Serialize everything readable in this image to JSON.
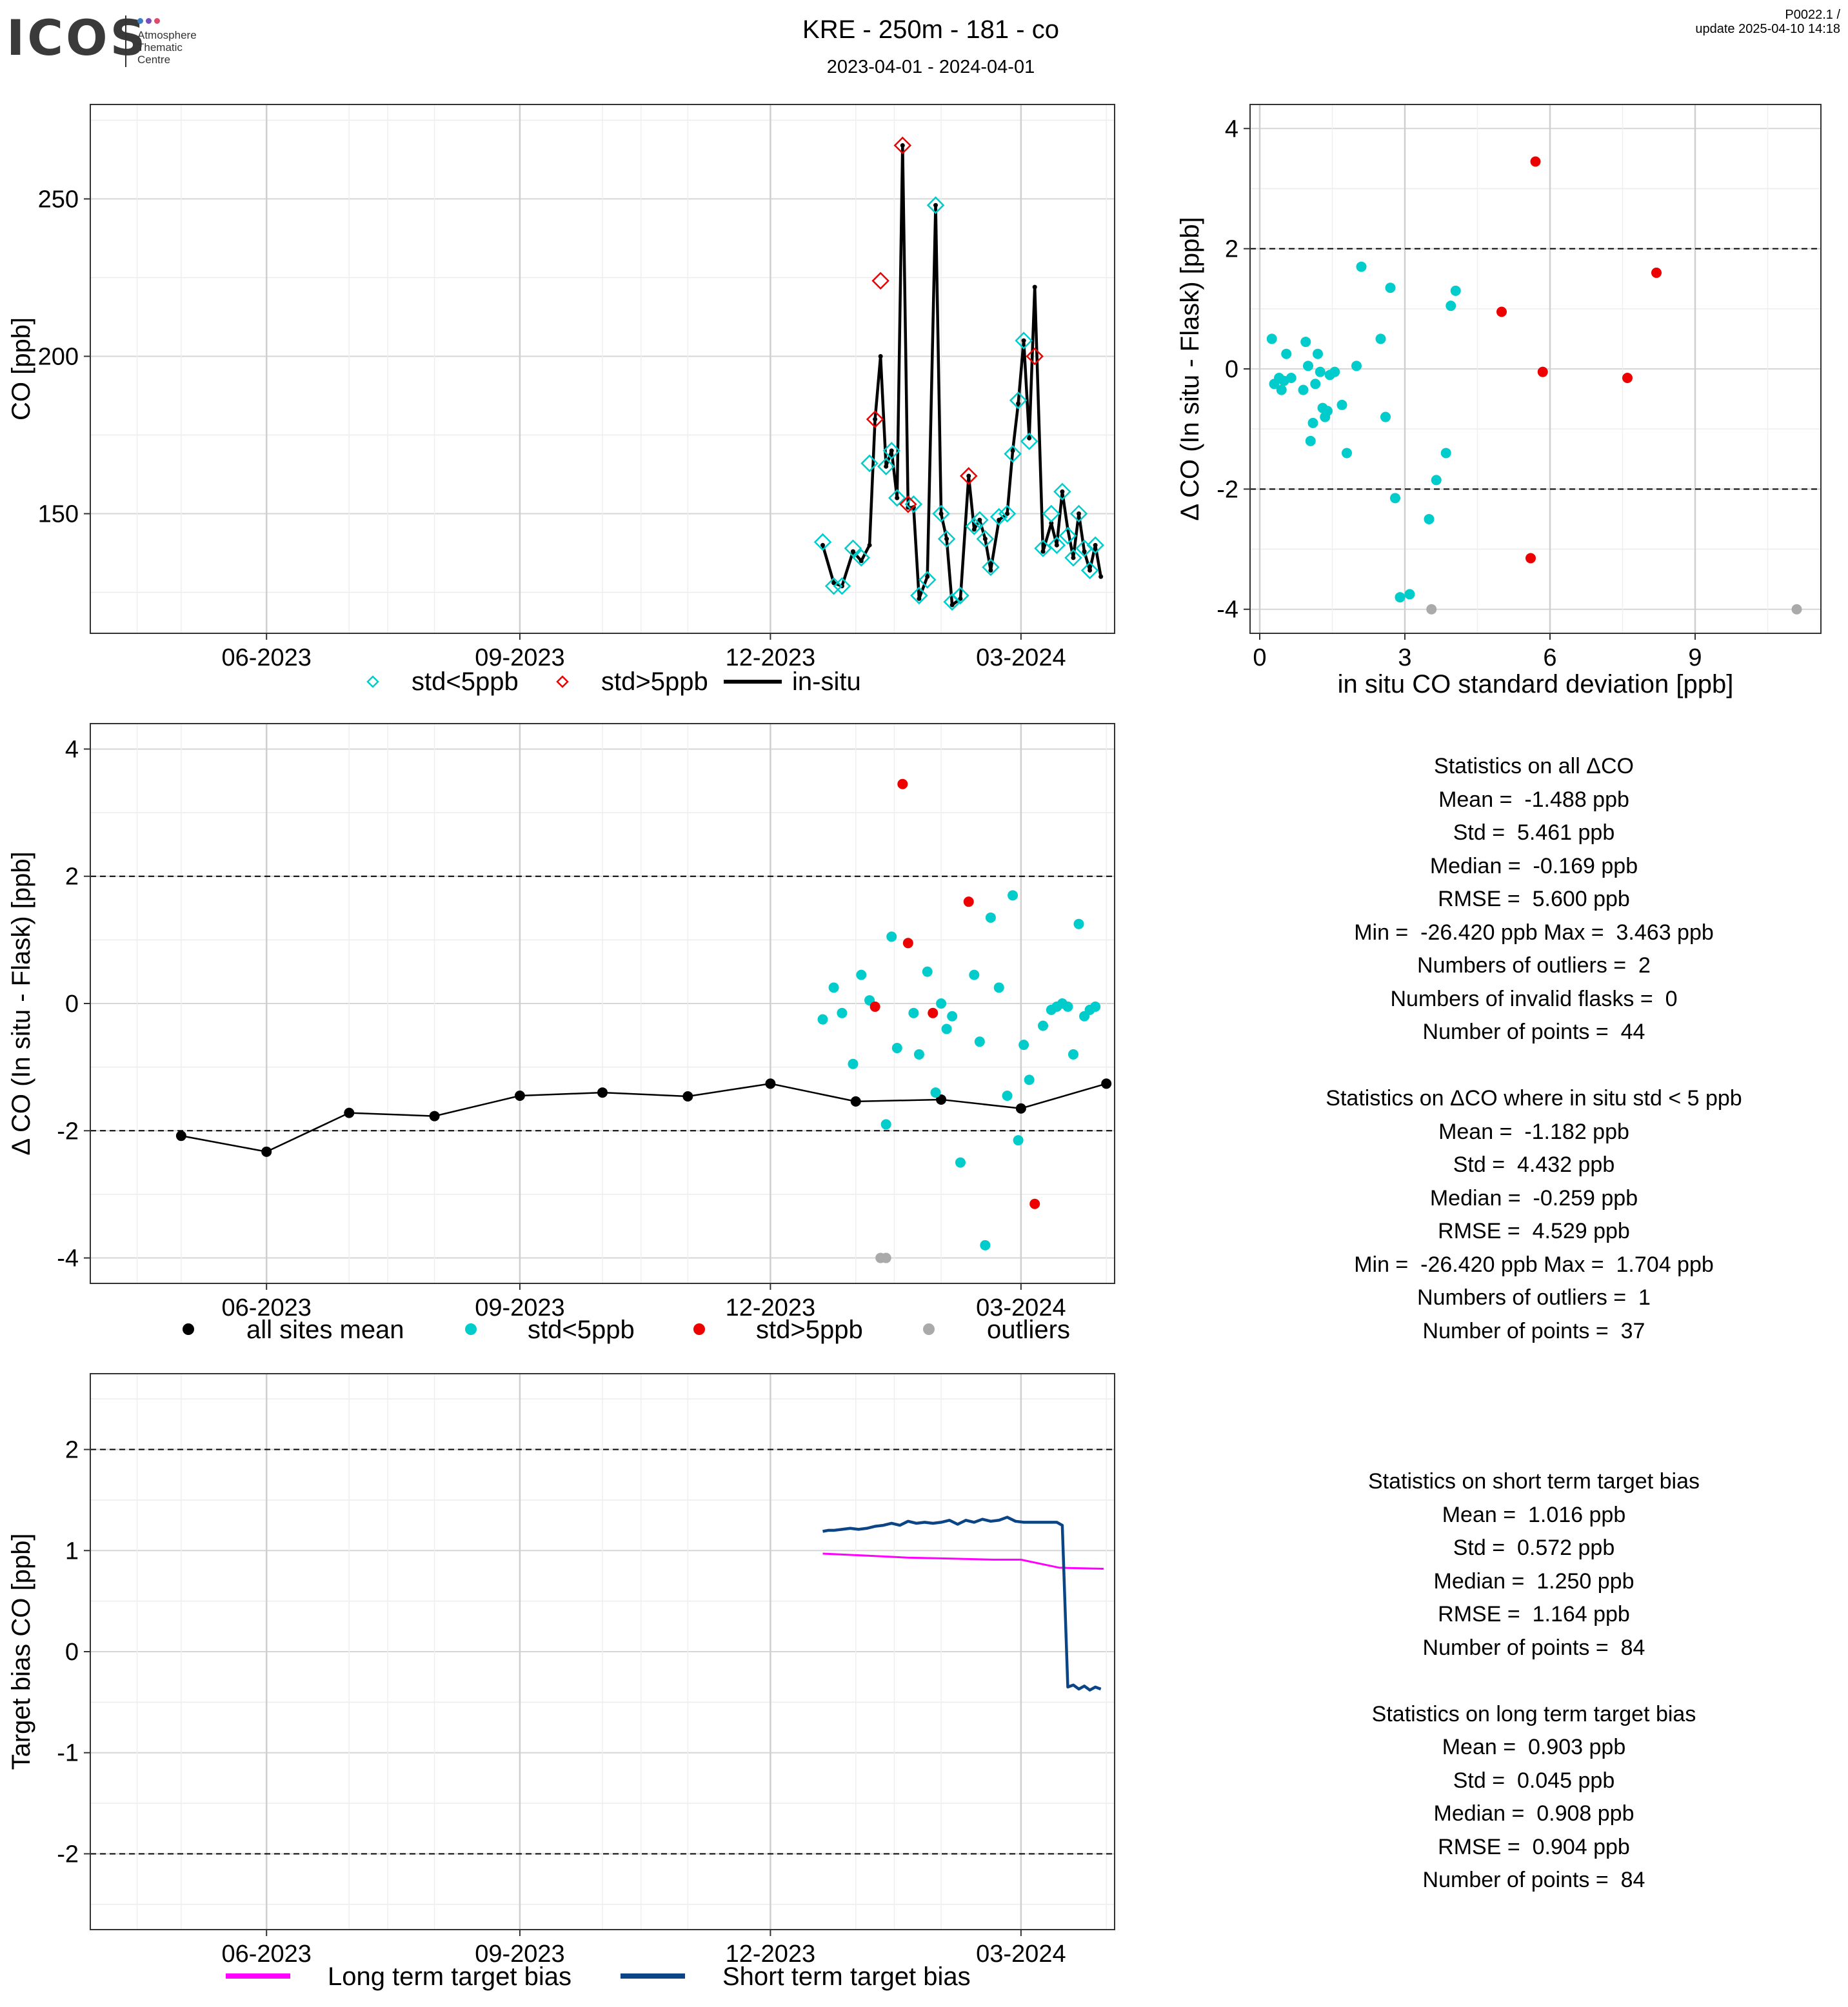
{
  "header": {
    "logo_text": "ICOS",
    "logo_sub": [
      "Atmosphere",
      "Thematic",
      "Centre"
    ],
    "title": "KRE - 250m - 181 - co",
    "subtitle": "2023-04-01 - 2024-04-01",
    "version_line1": "P0022.1 /",
    "version_line2": "update  2025-04-10 14:18"
  },
  "colors": {
    "cyan": "#00CCCC",
    "red": "#EE0000",
    "grey": "#AAAAAA",
    "black": "#000000",
    "magenta": "#FF00FF",
    "navy": "#0B4586"
  },
  "chart_data": [
    {
      "id": "co-timeseries",
      "type": "line",
      "ylabel": "CO [ppb]",
      "x_ticks": [
        "06-2023",
        "09-2023",
        "12-2023",
        "03-2024"
      ],
      "x_tick_dates": [
        "2023-06-01",
        "2023-09-01",
        "2023-12-01",
        "2024-03-01"
      ],
      "xlim": [
        "2023-03-29",
        "2024-04-04"
      ],
      "y_ticks": [
        150,
        200,
        250
      ],
      "ylim": [
        112,
        280
      ],
      "grid": true,
      "legend": {
        "position": "bottom",
        "entries": [
          "std<5ppb",
          "std>5ppb",
          "in-situ"
        ]
      },
      "series": [
        {
          "name": "in-situ",
          "x": [
            "2023-12-20",
            "2023-12-24",
            "2023-12-27",
            "2023-12-31",
            "2024-01-03",
            "2024-01-06",
            "2024-01-08",
            "2024-01-10",
            "2024-01-12",
            "2024-01-14",
            "2024-01-16",
            "2024-01-18",
            "2024-01-20",
            "2024-01-22",
            "2024-01-24",
            "2024-01-27",
            "2024-01-30",
            "2024-02-01",
            "2024-02-03",
            "2024-02-05",
            "2024-02-08",
            "2024-02-11",
            "2024-02-13",
            "2024-02-15",
            "2024-02-17",
            "2024-02-19",
            "2024-02-22",
            "2024-02-25",
            "2024-02-27",
            "2024-02-29",
            "2024-03-02",
            "2024-03-04",
            "2024-03-06",
            "2024-03-09",
            "2024-03-12",
            "2024-03-14",
            "2024-03-16",
            "2024-03-18",
            "2024-03-20",
            "2024-03-22",
            "2024-03-24",
            "2024-03-26",
            "2024-03-28",
            "2024-03-30"
          ],
          "values": [
            140,
            128,
            127,
            138,
            135,
            140,
            180,
            200,
            165,
            170,
            155,
            267,
            152,
            152,
            123,
            130,
            248,
            150,
            142,
            121,
            123,
            162,
            145,
            148,
            142,
            132,
            148,
            150,
            170,
            185,
            205,
            174,
            222,
            138,
            147,
            140,
            157,
            145,
            136,
            150,
            138,
            132,
            140,
            130
          ]
        },
        {
          "name": "std<5ppb",
          "x": [
            "2023-12-20",
            "2023-12-24",
            "2023-12-27",
            "2023-12-31",
            "2024-01-03",
            "2024-01-06",
            "2024-01-12",
            "2024-01-14",
            "2024-01-16",
            "2024-01-22",
            "2024-01-24",
            "2024-01-27",
            "2024-01-30",
            "2024-02-01",
            "2024-02-03",
            "2024-02-05",
            "2024-02-08",
            "2024-02-13",
            "2024-02-15",
            "2024-02-17",
            "2024-02-19",
            "2024-02-22",
            "2024-02-25",
            "2024-02-27",
            "2024-02-29",
            "2024-03-02",
            "2024-03-04",
            "2024-03-09",
            "2024-03-12",
            "2024-03-14",
            "2024-03-16",
            "2024-03-18",
            "2024-03-20",
            "2024-03-22",
            "2024-03-24",
            "2024-03-26",
            "2024-03-28"
          ],
          "values": [
            141,
            127,
            127,
            139,
            136,
            166,
            165,
            170,
            155,
            153,
            124,
            129,
            248,
            150,
            142,
            122,
            124,
            146,
            148,
            142,
            133,
            149,
            150,
            169,
            186,
            205,
            173,
            139,
            150,
            140,
            157,
            143,
            136,
            150,
            139,
            132,
            140
          ]
        },
        {
          "name": "std>5ppb",
          "x": [
            "2024-01-08",
            "2024-01-10",
            "2024-01-18",
            "2024-01-20",
            "2024-02-11",
            "2024-03-06"
          ],
          "values": [
            180,
            224,
            267,
            153,
            162,
            200
          ]
        }
      ]
    },
    {
      "id": "delta-vs-std",
      "type": "scatter",
      "xlabel": "in situ CO standard deviation [ppb]",
      "ylabel": "Δ CO (In situ - Flask) [ppb]",
      "x_ticks": [
        0,
        3,
        6,
        9
      ],
      "xlim": [
        -0.2,
        11.6
      ],
      "y_ticks": [
        -4,
        -2,
        0,
        2,
        4
      ],
      "ylim": [
        -4.4,
        4.4
      ],
      "reference_lines": [
        2,
        -2
      ],
      "grid": true,
      "series": [
        {
          "name": "std<5ppb",
          "points": [
            [
              0.25,
              0.5
            ],
            [
              0.3,
              -0.25
            ],
            [
              0.4,
              -0.15
            ],
            [
              0.45,
              -0.35
            ],
            [
              0.5,
              -0.2
            ],
            [
              0.55,
              0.25
            ],
            [
              0.65,
              -0.15
            ],
            [
              0.9,
              -0.35
            ],
            [
              0.95,
              0.45
            ],
            [
              1.0,
              0.05
            ],
            [
              1.05,
              -1.2
            ],
            [
              1.1,
              -0.9
            ],
            [
              1.15,
              -0.25
            ],
            [
              1.2,
              0.25
            ],
            [
              1.25,
              -0.05
            ],
            [
              1.3,
              -0.65
            ],
            [
              1.35,
              -0.8
            ],
            [
              1.4,
              -0.7
            ],
            [
              1.45,
              -0.1
            ],
            [
              1.55,
              -0.05
            ],
            [
              1.7,
              -0.6
            ],
            [
              1.8,
              -1.4
            ],
            [
              2.0,
              0.05
            ],
            [
              2.1,
              1.7
            ],
            [
              2.5,
              0.5
            ],
            [
              2.6,
              -0.8
            ],
            [
              2.7,
              1.35
            ],
            [
              2.8,
              -2.15
            ],
            [
              2.9,
              -3.8
            ],
            [
              3.1,
              -3.75
            ],
            [
              3.5,
              -2.5
            ],
            [
              3.65,
              -1.85
            ],
            [
              3.85,
              -1.4
            ],
            [
              3.95,
              1.05
            ],
            [
              4.05,
              1.3
            ]
          ]
        },
        {
          "name": "std>5ppb",
          "points": [
            [
              5.0,
              0.95
            ],
            [
              5.6,
              -3.15
            ],
            [
              5.7,
              3.45
            ],
            [
              5.85,
              -0.05
            ],
            [
              7.6,
              -0.15
            ],
            [
              8.2,
              1.6
            ]
          ]
        },
        {
          "name": "outliers",
          "points": [
            [
              3.55,
              -4.0
            ],
            [
              11.1,
              -4.0
            ]
          ]
        }
      ]
    },
    {
      "id": "delta-timeseries",
      "type": "scatter",
      "ylabel": "Δ CO (In situ - Flask) [ppb]",
      "x_ticks": [
        "06-2023",
        "09-2023",
        "12-2023",
        "03-2024"
      ],
      "x_tick_dates": [
        "2023-06-01",
        "2023-09-01",
        "2023-12-01",
        "2024-03-01"
      ],
      "xlim": [
        "2023-03-29",
        "2024-04-04"
      ],
      "y_ticks": [
        -4,
        -2,
        0,
        2,
        4
      ],
      "ylim": [
        -4.4,
        4.4
      ],
      "reference_lines": [
        2,
        -2
      ],
      "grid": true,
      "legend": {
        "position": "bottom",
        "entries": [
          "all sites mean",
          "std<5ppb",
          "std>5ppb",
          "outliers"
        ]
      },
      "series": [
        {
          "name": "all sites mean",
          "x": [
            "2023-05-01",
            "2023-06-01",
            "2023-07-01",
            "2023-08-01",
            "2023-09-01",
            "2023-10-01",
            "2023-11-01",
            "2023-12-01",
            "2024-01-01",
            "2024-02-01",
            "2024-03-01",
            "2024-04-01"
          ],
          "values": [
            -2.08,
            -2.33,
            -1.72,
            -1.77,
            -1.45,
            -1.4,
            -1.46,
            -1.26,
            -1.54,
            -1.51,
            -1.65,
            -1.26
          ]
        },
        {
          "name": "std<5ppb",
          "x": [
            "2023-12-20",
            "2023-12-24",
            "2023-12-27",
            "2023-12-31",
            "2024-01-03",
            "2024-01-06",
            "2024-01-12",
            "2024-01-14",
            "2024-01-16",
            "2024-01-22",
            "2024-01-24",
            "2024-01-27",
            "2024-01-30",
            "2024-02-01",
            "2024-02-03",
            "2024-02-05",
            "2024-02-08",
            "2024-02-13",
            "2024-02-15",
            "2024-02-17",
            "2024-02-19",
            "2024-02-22",
            "2024-02-25",
            "2024-02-27",
            "2024-02-29",
            "2024-03-02",
            "2024-03-04",
            "2024-03-09",
            "2024-03-12",
            "2024-03-14",
            "2024-03-16",
            "2024-03-18",
            "2024-03-20",
            "2024-03-22",
            "2024-03-24",
            "2024-03-26",
            "2024-03-28"
          ],
          "values": [
            -0.25,
            0.25,
            -0.15,
            -0.95,
            0.45,
            0.05,
            -1.9,
            1.05,
            -0.7,
            -0.15,
            -0.8,
            0.5,
            -1.4,
            0.0,
            -0.4,
            -0.2,
            -2.5,
            0.45,
            -0.6,
            -3.8,
            1.35,
            0.25,
            -1.45,
            1.7,
            -2.15,
            -0.65,
            -1.2,
            -0.35,
            -0.1,
            -0.05,
            0.0,
            -0.05,
            -0.8,
            1.25,
            -0.2,
            -0.1,
            -0.05
          ]
        },
        {
          "name": "std>5ppb",
          "x": [
            "2024-01-08",
            "2024-01-18",
            "2024-01-20",
            "2024-02-11",
            "2024-01-29",
            "2024-03-06"
          ],
          "values": [
            -0.05,
            3.45,
            0.95,
            1.6,
            -0.15,
            -3.15
          ]
        },
        {
          "name": "outliers",
          "x": [
            "2024-01-10",
            "2024-01-12"
          ],
          "values": [
            -4.0,
            -4.0
          ]
        }
      ]
    },
    {
      "id": "target-bias",
      "type": "line",
      "ylabel": "Target bias CO [ppb]",
      "x_ticks": [
        "06-2023",
        "09-2023",
        "12-2023",
        "03-2024"
      ],
      "x_tick_dates": [
        "2023-06-01",
        "2023-09-01",
        "2023-12-01",
        "2024-03-01"
      ],
      "xlim": [
        "2023-03-29",
        "2024-04-04"
      ],
      "y_ticks": [
        -2,
        -1,
        0,
        1,
        2
      ],
      "ylim": [
        -2.75,
        2.75
      ],
      "reference_lines": [
        2,
        -2
      ],
      "grid": true,
      "legend": {
        "position": "bottom",
        "entries": [
          "Long term target bias",
          "Short term target bias"
        ]
      },
      "series": [
        {
          "name": "Long term target bias",
          "x": [
            "2023-12-20",
            "2024-01-05",
            "2024-01-20",
            "2024-02-05",
            "2024-02-20",
            "2024-03-01",
            "2024-03-15",
            "2024-03-31"
          ],
          "values": [
            0.97,
            0.95,
            0.93,
            0.92,
            0.91,
            0.91,
            0.83,
            0.82
          ]
        },
        {
          "name": "Short term target bias",
          "x": [
            "2023-12-20",
            "2023-12-22",
            "2023-12-24",
            "2023-12-27",
            "2023-12-30",
            "2024-01-02",
            "2024-01-05",
            "2024-01-08",
            "2024-01-11",
            "2024-01-14",
            "2024-01-17",
            "2024-01-20",
            "2024-01-23",
            "2024-01-26",
            "2024-01-29",
            "2024-02-01",
            "2024-02-04",
            "2024-02-07",
            "2024-02-10",
            "2024-02-13",
            "2024-02-16",
            "2024-02-19",
            "2024-02-22",
            "2024-02-25",
            "2024-02-28",
            "2024-03-02",
            "2024-03-06",
            "2024-03-10",
            "2024-03-14",
            "2024-03-16",
            "2024-03-18",
            "2024-03-20",
            "2024-03-22",
            "2024-03-24",
            "2024-03-26",
            "2024-03-28",
            "2024-03-30"
          ],
          "values": [
            1.19,
            1.2,
            1.2,
            1.21,
            1.22,
            1.21,
            1.22,
            1.24,
            1.25,
            1.27,
            1.25,
            1.29,
            1.27,
            1.28,
            1.27,
            1.28,
            1.3,
            1.26,
            1.3,
            1.28,
            1.31,
            1.29,
            1.3,
            1.33,
            1.29,
            1.28,
            1.28,
            1.28,
            1.28,
            1.25,
            -0.35,
            -0.33,
            -0.37,
            -0.34,
            -0.38,
            -0.35,
            -0.37
          ]
        }
      ]
    }
  ],
  "stats_all": {
    "lines": [
      "Statistics on all ΔCO",
      "Mean =  -1.488 ppb",
      "Std =  5.461 ppb",
      "Median =  -0.169 ppb",
      "RMSE =  5.600 ppb",
      "Min =  -26.420 ppb Max =  3.463 ppb",
      "Numbers of outliers =  2",
      "Numbers of invalid flasks =  0",
      "Number of points =  44",
      "",
      "Statistics on ΔCO where in situ std < 5 ppb",
      "Mean =  -1.182 ppb",
      "Std =  4.432 ppb",
      "Median =  -0.259 ppb",
      "RMSE =  4.529 ppb",
      "Min =  -26.420 ppb Max =  1.704 ppb",
      "Numbers of outliers =  1",
      "Number of points =  37"
    ]
  },
  "stats_bias": {
    "lines": [
      "Statistics on short term target bias",
      "Mean =  1.016 ppb",
      "Std =  0.572 ppb",
      "Median =  1.250 ppb",
      "RMSE =  1.164 ppb",
      "Number of points =  84",
      "",
      "Statistics on long term target bias",
      "Mean =  0.903 ppb",
      "Std =  0.045 ppb",
      "Median =  0.908 ppb",
      "RMSE =  0.904 ppb",
      "Number of points =  84"
    ]
  }
}
